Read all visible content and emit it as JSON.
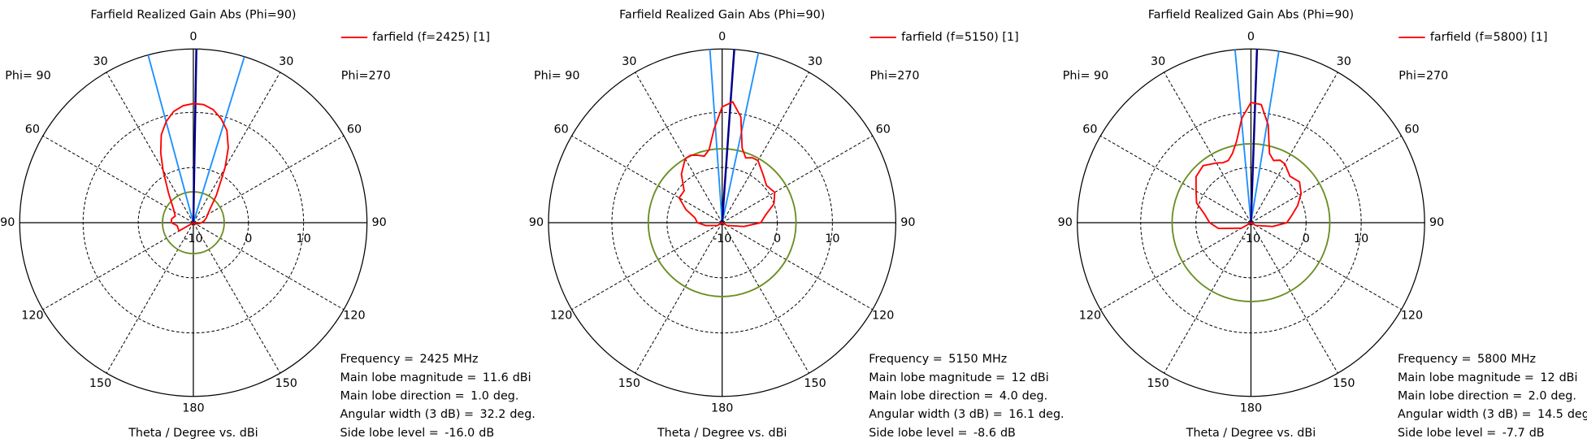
{
  "chart_data": [
    {
      "type": "polar",
      "title": "Farfield Realized Gain Abs (Phi=90)",
      "x_label": "Theta / Degree vs. dBi",
      "phi_labels": [
        "Phi= 90",
        "Phi=270"
      ],
      "series": [
        {
          "name": "farfield (f=2425) [1]",
          "color": "#ff0000",
          "x": [
            -180,
            -150,
            -120,
            -100,
            -90,
            -80,
            -70,
            -60,
            -50,
            -40,
            -30,
            -25,
            -20,
            -15,
            -10,
            -5,
            0,
            5,
            10,
            15,
            20,
            25,
            30,
            40,
            50,
            60,
            70,
            80,
            90,
            100,
            120,
            150
          ],
          "values": [
            -10,
            -10,
            -7,
            -7,
            -6,
            -6,
            -6.5,
            -6,
            -5,
            -3,
            1,
            4,
            7,
            9,
            10.5,
            11.3,
            11.6,
            11.5,
            10.8,
            9.5,
            7.8,
            5,
            1.5,
            -3.5,
            -6,
            -7,
            -7.5,
            -8,
            -8.5,
            -9,
            -9.5,
            -10
          ]
        }
      ],
      "rlim": [
        -10,
        21.5
      ],
      "rticks": [
        -10,
        0,
        10
      ],
      "angle_ticks": [
        0,
        30,
        60,
        90,
        120,
        150,
        180
      ],
      "main_lobe_color": "#00008b",
      "beamwidth_color": "#1e90ff",
      "sidelobe_color": "#6b8e23",
      "info": {
        "labels": [
          "Frequency =",
          "Main lobe magnitude =",
          "Main lobe direction =",
          "Angular width (3 dB) =",
          "Side lobe level ="
        ],
        "values": [
          2425,
          11.6,
          1.0,
          32.2,
          -16.0
        ],
        "value_labels": [
          "2425",
          "11.6",
          "1.0",
          "32.2",
          "-16.0"
        ],
        "units": [
          "MHz",
          "dBi",
          "deg.",
          "deg.",
          "dB"
        ]
      }
    },
    {
      "type": "polar",
      "title": "Farfield Realized Gain Abs (Phi=90)",
      "x_label": "Theta / Degree vs. dBi",
      "phi_labels": [
        "Phi= 90",
        "Phi=270"
      ],
      "series": [
        {
          "name": "farfield (f=5150) [1]",
          "color": "#ff0000",
          "x": [
            -180,
            -150,
            -120,
            -100,
            -90,
            -80,
            -70,
            -60,
            -50,
            -40,
            -30,
            -25,
            -20,
            -15,
            -10,
            -5,
            0,
            5,
            10,
            15,
            20,
            25,
            30,
            40,
            50,
            60,
            70,
            80,
            90,
            100,
            120,
            150
          ],
          "values": [
            -10,
            -10,
            -9,
            -7,
            -5.5,
            -5,
            -3,
            -1,
            -1,
            1.5,
            3.4,
            3.5,
            3,
            2.5,
            3.5,
            7,
            11,
            12,
            9.5,
            4,
            2.5,
            3,
            3,
            1.5,
            0.5,
            1,
            0,
            -2,
            -3,
            -6,
            -9,
            -10
          ]
        }
      ],
      "rlim": [
        -10,
        21.5
      ],
      "rticks": [
        -10,
        0,
        10
      ],
      "angle_ticks": [
        0,
        30,
        60,
        90,
        120,
        150,
        180
      ],
      "main_lobe_color": "#00008b",
      "beamwidth_color": "#1e90ff",
      "sidelobe_color": "#6b8e23",
      "info": {
        "labels": [
          "Frequency =",
          "Main lobe magnitude =",
          "Main lobe direction =",
          "Angular width (3 dB) =",
          "Side lobe level ="
        ],
        "values": [
          5150,
          12,
          4.0,
          16.1,
          -8.6
        ],
        "value_labels": [
          "5150",
          "12",
          "4.0",
          "16.1",
          "-8.6"
        ],
        "units": [
          "MHz",
          "dBi",
          "deg.",
          "deg.",
          "dB"
        ]
      }
    },
    {
      "type": "polar",
      "title": "Farfield Realized Gain Abs (Phi=90)",
      "x_label": "Theta / Degree vs. dBi",
      "phi_labels": [
        "Phi= 90",
        "Phi=270"
      ],
      "series": [
        {
          "name": "farfield (f=5800) [1]",
          "color": "#ff0000",
          "x": [
            -180,
            -150,
            -120,
            -100,
            -90,
            -80,
            -70,
            -60,
            -50,
            -40,
            -30,
            -25,
            -20,
            -15,
            -10,
            -5,
            0,
            5,
            10,
            15,
            20,
            25,
            30,
            40,
            50,
            60,
            70,
            80,
            90,
            100,
            120,
            150
          ],
          "values": [
            -10,
            -10,
            -8,
            -4,
            -2.5,
            -1.5,
            0.5,
            1.5,
            3,
            3.5,
            2.5,
            2,
            2,
            3,
            5,
            9,
            11.8,
            11.5,
            8,
            3,
            2,
            2.5,
            2.3,
            1,
            1.5,
            0.5,
            -1,
            -2.5,
            -3.5,
            -6,
            -9,
            -10
          ]
        }
      ],
      "rlim": [
        -10,
        21.5
      ],
      "rticks": [
        -10,
        0,
        10
      ],
      "angle_ticks": [
        0,
        30,
        60,
        90,
        120,
        150,
        180
      ],
      "main_lobe_color": "#00008b",
      "beamwidth_color": "#1e90ff",
      "sidelobe_color": "#6b8e23",
      "info": {
        "labels": [
          "Frequency =",
          "Main lobe magnitude =",
          "Main lobe direction =",
          "Angular width (3 dB) =",
          "Side lobe level ="
        ],
        "values": [
          5800,
          12,
          2.0,
          14.5,
          -7.7
        ],
        "value_labels": [
          "5800",
          "12",
          "2.0",
          "14.5",
          "-7.7"
        ],
        "units": [
          "MHz",
          "dBi",
          "deg.",
          "deg.",
          "dB"
        ]
      }
    }
  ]
}
